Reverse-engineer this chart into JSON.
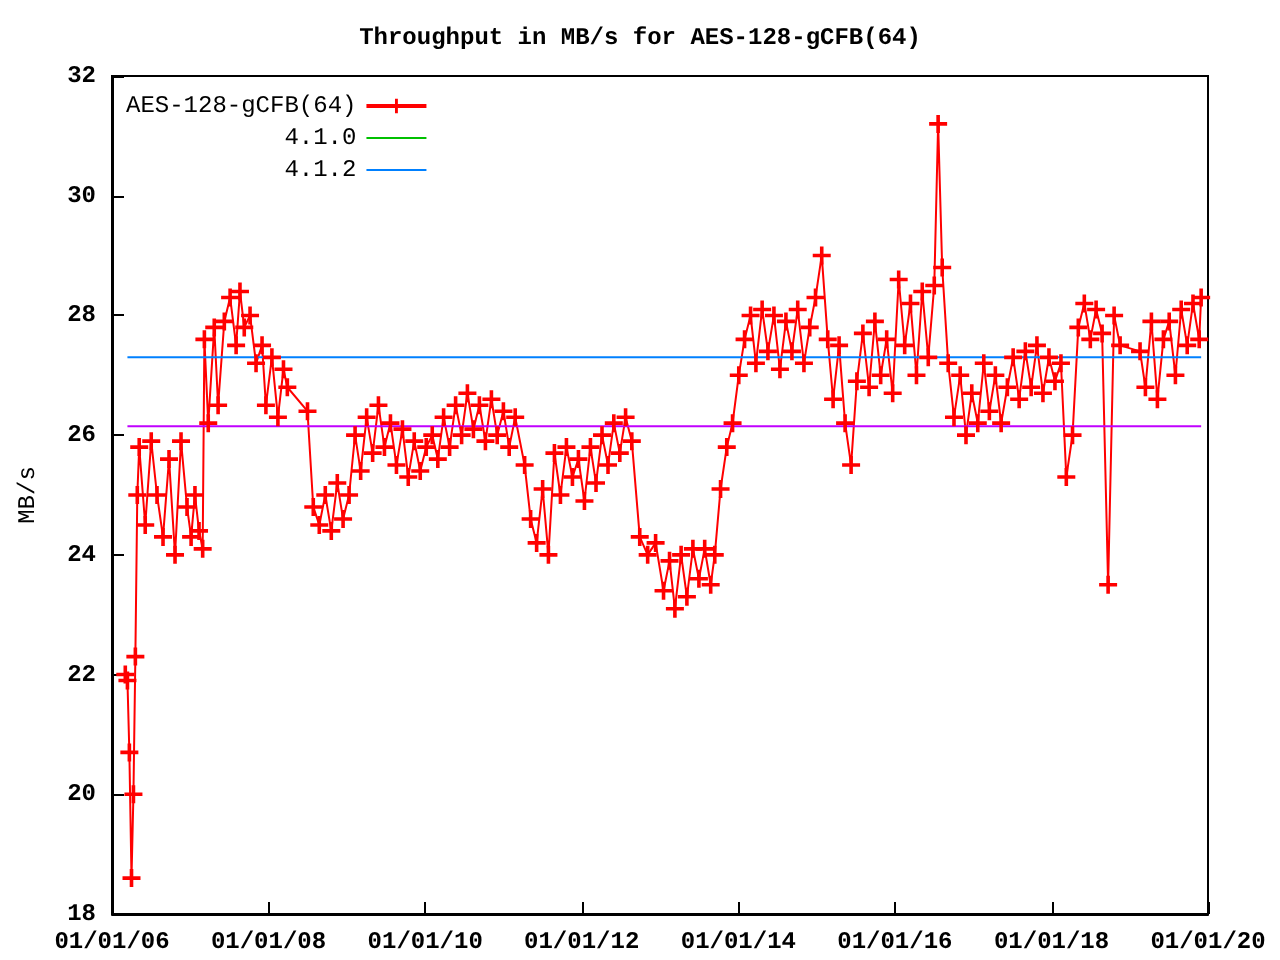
{
  "chart_data": {
    "type": "line",
    "title": "Throughput in MB/s for AES-128-gCFB(64)",
    "ylabel": "MB/s",
    "xlim": [
      "2006-01-01",
      "2020-01-01"
    ],
    "xticks": [
      {
        "value": "2006-01-01",
        "label": "01/01/06"
      },
      {
        "value": "2008-01-01",
        "label": "01/01/08"
      },
      {
        "value": "2010-01-01",
        "label": "01/01/10"
      },
      {
        "value": "2012-01-01",
        "label": "01/01/12"
      },
      {
        "value": "2014-01-01",
        "label": "01/01/14"
      },
      {
        "value": "2016-01-01",
        "label": "01/01/16"
      },
      {
        "value": "2018-01-01",
        "label": "01/01/18"
      },
      {
        "value": "2020-01-01",
        "label": "01/01/20"
      }
    ],
    "ylim": [
      18,
      32
    ],
    "yticks": [
      18,
      20,
      22,
      24,
      26,
      28,
      30,
      32
    ],
    "grid": false,
    "legend": "top left",
    "series": [
      {
        "name": "AES-128-gCFB(64)",
        "color": "#ff0000",
        "marker": "cross",
        "x": [
          "2006-03-04",
          "2006-03-14",
          "2006-03-23",
          "2006-04-02",
          "2006-04-11",
          "2006-04-20",
          "2006-04-29",
          "2006-05-08",
          "2006-06-05",
          "2006-07-03",
          "2006-07-30",
          "2006-08-27",
          "2006-09-24",
          "2006-10-22",
          "2006-11-19",
          "2006-12-17",
          "2007-01-05",
          "2007-01-23",
          "2007-02-11",
          "2007-02-28",
          "2007-03-08",
          "2007-03-26",
          "2007-04-23",
          "2007-05-11",
          "2007-06-09",
          "2007-07-06",
          "2007-08-03",
          "2007-08-21",
          "2007-09-10",
          "2007-10-07",
          "2007-11-04",
          "2007-12-02",
          "2007-12-20",
          "2008-01-17",
          "2008-02-14",
          "2008-03-11",
          "2008-03-29",
          "2008-07-01",
          "2008-07-28",
          "2008-08-25",
          "2008-09-22",
          "2008-10-20",
          "2008-11-17",
          "2008-12-14",
          "2009-01-11",
          "2009-02-08",
          "2009-03-06",
          "2009-04-03",
          "2009-05-01",
          "2009-05-28",
          "2009-06-25",
          "2009-07-23",
          "2009-08-20",
          "2009-09-17",
          "2009-10-14",
          "2009-11-11",
          "2009-12-09",
          "2010-01-06",
          "2010-02-03",
          "2010-03-01",
          "2010-03-28",
          "2010-04-25",
          "2010-05-23",
          "2010-06-20",
          "2010-07-17",
          "2010-08-14",
          "2010-09-11",
          "2010-10-09",
          "2010-11-06",
          "2010-12-03",
          "2011-01-01",
          "2011-01-28",
          "2011-02-25",
          "2011-04-10",
          "2011-05-08",
          "2011-06-05",
          "2011-07-03",
          "2011-07-30",
          "2011-08-27",
          "2011-09-24",
          "2011-10-22",
          "2011-11-19",
          "2011-12-17",
          "2012-01-14",
          "2012-02-11",
          "2012-03-08",
          "2012-04-05",
          "2012-05-03",
          "2012-05-30",
          "2012-06-27",
          "2012-07-24",
          "2012-08-22",
          "2012-09-28",
          "2012-11-04",
          "2012-12-11",
          "2013-01-17",
          "2013-02-14",
          "2013-03-11",
          "2013-04-09",
          "2013-05-06",
          "2013-06-03",
          "2013-07-01",
          "2013-07-28",
          "2013-08-25",
          "2013-09-13",
          "2013-10-10",
          "2013-11-08",
          "2013-12-05",
          "2014-01-03",
          "2014-01-30",
          "2014-02-27",
          "2014-03-24",
          "2014-04-22",
          "2014-05-19",
          "2014-06-16",
          "2014-07-14",
          "2014-08-11",
          "2014-09-08",
          "2014-10-05",
          "2014-11-03",
          "2014-11-30",
          "2014-12-27",
          "2015-01-25",
          "2015-02-22",
          "2015-03-19",
          "2015-04-16",
          "2015-05-14",
          "2015-06-11",
          "2015-07-08",
          "2015-08-05",
          "2015-09-03",
          "2015-09-30",
          "2015-10-27",
          "2015-11-24",
          "2015-12-22",
          "2016-01-19",
          "2016-02-16",
          "2016-03-14",
          "2016-04-11",
          "2016-05-08",
          "2016-06-05",
          "2016-07-03",
          "2016-07-21",
          "2016-08-09",
          "2016-09-06",
          "2016-10-03",
          "2016-11-01",
          "2016-11-28",
          "2016-12-25",
          "2017-01-22",
          "2017-02-19",
          "2017-03-17",
          "2017-04-14",
          "2017-05-11",
          "2017-06-09",
          "2017-07-06",
          "2017-08-03",
          "2017-09-01",
          "2017-09-28",
          "2017-10-25",
          "2017-11-22",
          "2017-12-20",
          "2018-01-17",
          "2018-02-14",
          "2018-03-11",
          "2018-04-09",
          "2018-05-06",
          "2018-06-03",
          "2018-07-01",
          "2018-07-28",
          "2018-08-25",
          "2018-09-22",
          "2018-10-20",
          "2018-11-17",
          "2019-02-18",
          "2019-03-15",
          "2019-04-12",
          "2019-05-10",
          "2019-06-07",
          "2019-07-04",
          "2019-08-02",
          "2019-08-29",
          "2019-09-26",
          "2019-10-23",
          "2019-11-21",
          "2019-11-30"
        ],
        "values": [
          22.0,
          21.9,
          20.7,
          18.6,
          20.0,
          22.3,
          25.0,
          25.8,
          24.5,
          25.9,
          25.0,
          24.3,
          25.6,
          24.0,
          25.9,
          24.8,
          24.3,
          25.0,
          24.4,
          24.1,
          27.6,
          26.2,
          27.8,
          26.5,
          27.9,
          28.3,
          27.5,
          28.4,
          27.8,
          28.0,
          27.2,
          27.5,
          26.5,
          27.3,
          26.3,
          27.1,
          26.8,
          26.4,
          24.8,
          24.5,
          25.0,
          24.4,
          25.2,
          24.6,
          25.0,
          26.0,
          25.4,
          26.3,
          25.7,
          26.5,
          25.8,
          26.2,
          25.5,
          26.1,
          25.3,
          25.9,
          25.4,
          25.8,
          26.0,
          25.6,
          26.3,
          25.8,
          26.5,
          26.0,
          26.7,
          26.1,
          26.5,
          25.9,
          26.6,
          26.0,
          26.4,
          25.8,
          26.3,
          25.5,
          24.6,
          24.2,
          25.1,
          24.0,
          25.7,
          25.0,
          25.8,
          25.3,
          25.6,
          24.9,
          25.8,
          25.2,
          26.0,
          25.5,
          26.2,
          25.7,
          26.3,
          25.9,
          24.3,
          24.0,
          24.2,
          23.4,
          23.9,
          23.1,
          24.0,
          23.3,
          24.1,
          23.6,
          24.1,
          23.5,
          24.0,
          25.1,
          25.8,
          26.2,
          27.0,
          27.6,
          28.0,
          27.2,
          28.1,
          27.4,
          28.0,
          27.1,
          27.9,
          27.4,
          28.1,
          27.2,
          27.8,
          28.3,
          29.0,
          27.6,
          26.6,
          27.5,
          26.2,
          25.5,
          26.9,
          27.7,
          26.8,
          27.9,
          27.0,
          27.6,
          26.7,
          28.6,
          27.5,
          28.2,
          27.0,
          28.4,
          27.3,
          28.5,
          31.2,
          28.8,
          27.2,
          26.3,
          27.0,
          26.0,
          26.7,
          26.2,
          27.2,
          26.4,
          27.0,
          26.2,
          26.8,
          27.3,
          26.6,
          27.4,
          26.8,
          27.5,
          26.7,
          27.3,
          26.9,
          27.2,
          25.3,
          26.0,
          27.8,
          28.2,
          27.6,
          28.1,
          27.7,
          23.5,
          28.0,
          27.5,
          27.4,
          26.8,
          27.9,
          26.6,
          27.6,
          27.9,
          27.0,
          28.1,
          27.5,
          28.2,
          27.6,
          28.3
        ]
      },
      {
        "name": "4.1.0",
        "color": "#00c000",
        "marker": "none"
      },
      {
        "name": "4.1.2",
        "color": "#0080ff",
        "marker": "none",
        "x": [
          "2006-03-14",
          "2019-11-30"
        ],
        "values": [
          27.3,
          27.3
        ]
      },
      {
        "color": "#c000ff",
        "marker": "none",
        "x": [
          "2006-03-14",
          "2019-11-30"
        ],
        "values": [
          26.15,
          26.15
        ]
      }
    ]
  }
}
